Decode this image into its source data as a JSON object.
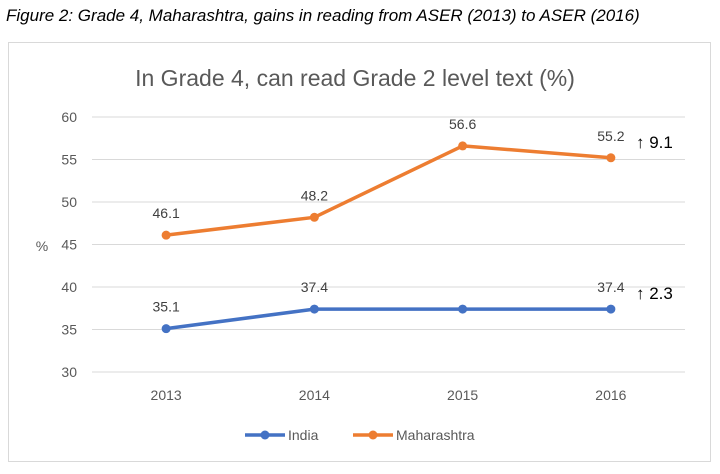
{
  "figure_caption": "Figure 2: Grade 4, Maharashtra, gains in reading from ASER (2013) to ASER (2016)",
  "chart_data": {
    "type": "line",
    "title": "In Grade 4, can read Grade 2 level text (%)",
    "xlabel": "",
    "ylabel": "%",
    "categories": [
      "2013",
      "2014",
      "2015",
      "2016"
    ],
    "ylim": [
      30,
      60
    ],
    "yticks": [
      30,
      35,
      40,
      45,
      50,
      55,
      60
    ],
    "grid": true,
    "legend_position": "bottom",
    "series": [
      {
        "name": "India",
        "color": "#4472c4",
        "values": [
          35.1,
          37.4,
          37.4,
          37.4
        ],
        "labels": [
          "35.1",
          "37.4",
          "",
          "37.4"
        ]
      },
      {
        "name": "Maharashtra",
        "color": "#ed7d31",
        "values": [
          46.1,
          48.2,
          56.6,
          55.2
        ],
        "labels": [
          "46.1",
          "48.2",
          "56.6",
          "55.2"
        ]
      }
    ],
    "annotations": [
      {
        "series": "Maharashtra",
        "text": "↑ 9.1"
      },
      {
        "series": "India",
        "text": "↑ 2.3"
      }
    ]
  }
}
